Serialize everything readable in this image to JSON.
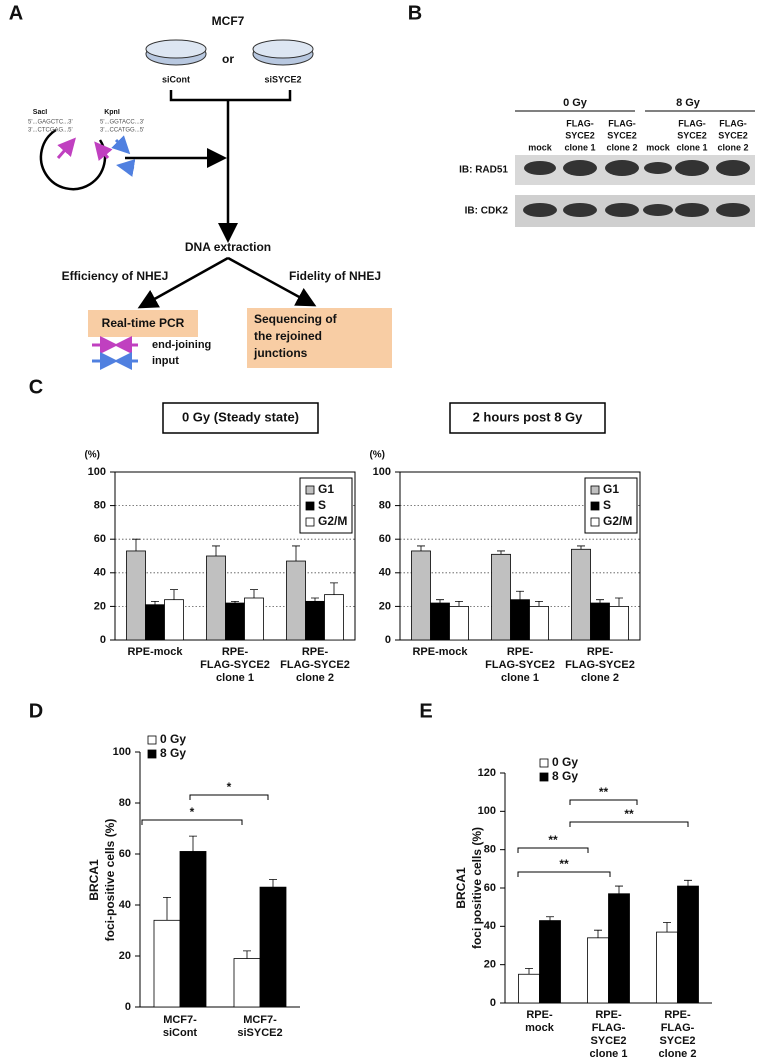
{
  "panel_labels": [
    "A",
    "B",
    "C",
    "D",
    "E"
  ],
  "panel_a": {
    "cell_line": "MCF7",
    "conditions": [
      "siCont",
      "siSYCE2"
    ],
    "or": "or",
    "sites": [
      {
        "name": "SacI",
        "seq": [
          "5'...GAGCTC...3'",
          "3'...CTCGAG...5'"
        ]
      },
      {
        "name": "KpnI",
        "seq": [
          "5'...GGTACC...3'",
          "3'...CCATGG...5'"
        ]
      }
    ],
    "step": "DNA extraction",
    "branches": [
      "Efficiency of NHEJ",
      "Fidelity of NHEJ"
    ],
    "boxes": [
      [
        "Real-time PCR"
      ],
      [
        "Sequencing of",
        "the rejoined",
        "junctions"
      ]
    ],
    "primers": [
      "end-joining",
      "input"
    ]
  },
  "panel_b": {
    "doses": [
      "0 Gy",
      "8 Gy"
    ],
    "lanes": [
      [
        "mock"
      ],
      [
        "FLAG-",
        "SYCE2",
        "clone 1"
      ],
      [
        "FLAG-",
        "SYCE2",
        "clone 2"
      ],
      [
        "mock"
      ],
      [
        "FLAG-",
        "SYCE2",
        "clone 1"
      ],
      [
        "FLAG-",
        "SYCE2",
        "clone 2"
      ]
    ],
    "blots": [
      "IB: RAD51",
      "IB: CDK2"
    ]
  },
  "chart_data": [
    {
      "type": "bar",
      "title": "0 Gy (Steady state)",
      "y_unit": "(%)",
      "categories": [
        [
          "RPE-mock"
        ],
        [
          "RPE-",
          "FLAG-SYCE2",
          "clone 1"
        ],
        [
          "RPE-",
          "FLAG-SYCE2",
          "clone 2"
        ]
      ],
      "series": [
        {
          "name": "G1",
          "color": "#c0c0c0",
          "values": [
            53,
            50,
            47
          ],
          "errors": [
            7,
            6,
            9
          ]
        },
        {
          "name": "S",
          "color": "#000000",
          "values": [
            21,
            22,
            23
          ],
          "errors": [
            2,
            1,
            2
          ]
        },
        {
          "name": "G2/M",
          "color": "#ffffff",
          "values": [
            24,
            25,
            27
          ],
          "errors": [
            6,
            5,
            7
          ]
        }
      ],
      "ylim": [
        0,
        100
      ],
      "yticks": [
        0,
        20,
        40,
        60,
        80,
        100
      ],
      "grid": true
    },
    {
      "type": "bar",
      "title": "2 hours post 8 Gy",
      "y_unit": "(%)",
      "categories": [
        [
          "RPE-mock"
        ],
        [
          "RPE-",
          "FLAG-SYCE2",
          "clone 1"
        ],
        [
          "RPE-",
          "FLAG-SYCE2",
          "clone 2"
        ]
      ],
      "series": [
        {
          "name": "G1",
          "color": "#c0c0c0",
          "values": [
            53,
            51,
            54
          ],
          "errors": [
            3,
            2,
            2
          ]
        },
        {
          "name": "S",
          "color": "#000000",
          "values": [
            22,
            24,
            22
          ],
          "errors": [
            2,
            5,
            2
          ]
        },
        {
          "name": "G2/M",
          "color": "#ffffff",
          "values": [
            20,
            20,
            20
          ],
          "errors": [
            3,
            3,
            5
          ]
        }
      ],
      "ylim": [
        0,
        100
      ],
      "yticks": [
        0,
        20,
        40,
        60,
        80,
        100
      ],
      "grid": true
    },
    {
      "type": "bar",
      "ylabel": [
        "BRCA1",
        "foci-positive cells (%)"
      ],
      "categories": [
        [
          "MCF7-",
          "siCont"
        ],
        [
          "MCF7-",
          "siSYCE2"
        ]
      ],
      "series": [
        {
          "name": "0 Gy",
          "color": "#ffffff",
          "values": [
            34,
            19
          ],
          "errors": [
            9,
            3
          ]
        },
        {
          "name": "8 Gy",
          "color": "#000000",
          "values": [
            61,
            47
          ],
          "errors": [
            6,
            3
          ]
        }
      ],
      "ylim": [
        0,
        100
      ],
      "yticks": [
        0,
        20,
        40,
        60,
        80,
        100
      ],
      "grid": false,
      "annotations": [
        "*",
        "*"
      ]
    },
    {
      "type": "bar",
      "ylabel": [
        "BRCA1",
        "foci positive cells (%)"
      ],
      "categories": [
        [
          "RPE-",
          "mock"
        ],
        [
          "RPE-",
          "FLAG-",
          "SYCE2",
          "clone 1"
        ],
        [
          "RPE-",
          "FLAG-",
          "SYCE2",
          "clone 2"
        ]
      ],
      "series": [
        {
          "name": "0 Gy",
          "color": "#ffffff",
          "values": [
            15,
            34,
            37
          ],
          "errors": [
            3,
            4,
            5
          ]
        },
        {
          "name": "8 Gy",
          "color": "#000000",
          "values": [
            43,
            57,
            61
          ],
          "errors": [
            2,
            4,
            3
          ]
        }
      ],
      "ylim": [
        0,
        120
      ],
      "yticks": [
        0,
        20,
        40,
        60,
        80,
        100,
        120
      ],
      "grid": false,
      "annotations": [
        "**",
        "**",
        "**",
        "**"
      ]
    }
  ]
}
